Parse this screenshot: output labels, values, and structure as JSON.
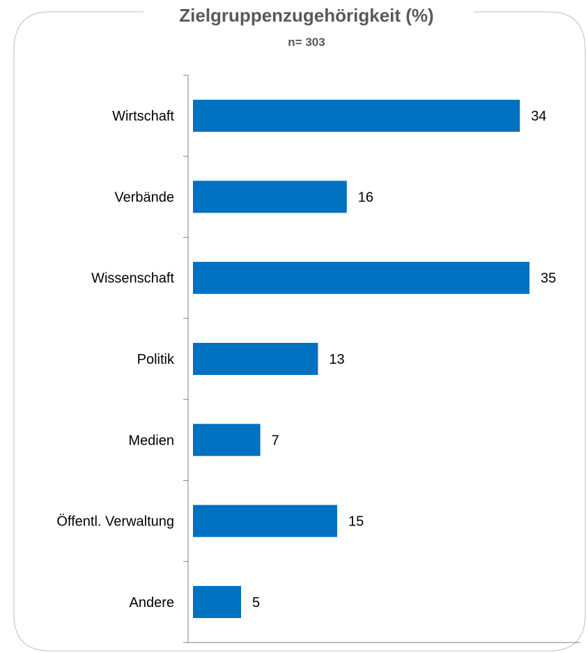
{
  "chart_data": {
    "type": "bar",
    "orientation": "horizontal",
    "title": "Zielgruppenzugehörigkeit (%)",
    "subtitle": "n= 303",
    "categories": [
      "Wirtschaft",
      "Verbände",
      "Wissenschaft",
      "Politik",
      "Medien",
      "Öffentl. Verwaltung",
      "Andere"
    ],
    "values": [
      34,
      16,
      35,
      13,
      7,
      15,
      5
    ],
    "xlim": [
      0,
      40
    ],
    "grid": false,
    "legend": "none",
    "bar_color": "#0070C0",
    "border_color": "#BFBFBF",
    "axis_color": "#808080"
  }
}
